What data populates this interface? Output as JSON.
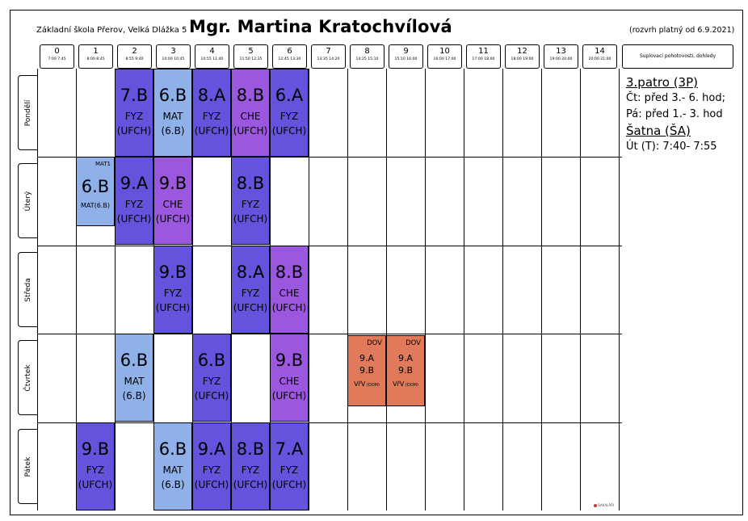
{
  "header": {
    "school": "Základní škola Přerov, Velká Dlážka 5",
    "teacher": "Mgr. Martina Kratochvílová",
    "valid_from": "(rozvrh platný od 6.9.2021)"
  },
  "periods": [
    {
      "n": "0",
      "t": "7:00 7:45"
    },
    {
      "n": "1",
      "t": "8:00 8:45"
    },
    {
      "n": "2",
      "t": "8:55 9:40"
    },
    {
      "n": "3",
      "t": "10:00 10:45"
    },
    {
      "n": "4",
      "t": "10:55 11:40"
    },
    {
      "n": "5",
      "t": "11:50 12:35"
    },
    {
      "n": "6",
      "t": "12:45 13:30"
    },
    {
      "n": "7",
      "t": "13:35 14:20"
    },
    {
      "n": "8",
      "t": "14:25 15:10"
    },
    {
      "n": "9",
      "t": "15:10 16:00"
    },
    {
      "n": "10",
      "t": "16:00 17:00"
    },
    {
      "n": "11",
      "t": "17:00 18:00"
    },
    {
      "n": "12",
      "t": "18:00 19:00"
    },
    {
      "n": "13",
      "t": "19:00 20:00"
    },
    {
      "n": "14",
      "t": "20:00 21:00"
    }
  ],
  "right_header": "Suplovací pohotovosti, dohledy",
  "days": [
    "Pondělí",
    "Úterý",
    "Středa",
    "Čtvrtek",
    "Pátek"
  ],
  "colors": {
    "fyz": "#6453dd",
    "mat": "#8fb0e8",
    "che": "#9b57dd",
    "dov": "#e07a5a"
  },
  "lessons": [
    {
      "day": 0,
      "period": 2,
      "kind": "fyz",
      "lines": [
        "7.B",
        "FYZ",
        "(UFCH)"
      ]
    },
    {
      "day": 0,
      "period": 3,
      "kind": "mat",
      "lines": [
        "6.B",
        "MAT",
        "(6.B)"
      ]
    },
    {
      "day": 0,
      "period": 4,
      "kind": "fyz",
      "lines": [
        "8.A",
        "FYZ",
        "(UFCH)"
      ]
    },
    {
      "day": 0,
      "period": 5,
      "kind": "che",
      "lines": [
        "8.B",
        "CHE",
        "(UFCH)"
      ]
    },
    {
      "day": 0,
      "period": 6,
      "kind": "fyz",
      "lines": [
        "6.A",
        "FYZ",
        "(UFCH)"
      ]
    },
    {
      "day": 1,
      "period": 1,
      "kind": "mat",
      "style": "small",
      "tag": "MAT1",
      "lines": [
        "6.B",
        "MAT(6.B)"
      ]
    },
    {
      "day": 1,
      "period": 2,
      "kind": "fyz",
      "lines": [
        "9.A",
        "FYZ",
        "(UFCH)"
      ]
    },
    {
      "day": 1,
      "period": 3,
      "kind": "che",
      "lines": [
        "9.B",
        "CHE",
        "(UFCH)"
      ]
    },
    {
      "day": 1,
      "period": 5,
      "kind": "fyz",
      "lines": [
        "8.B",
        "FYZ",
        "(UFCH)"
      ]
    },
    {
      "day": 2,
      "period": 3,
      "kind": "fyz",
      "lines": [
        "9.B",
        "FYZ",
        "(UFCH)"
      ]
    },
    {
      "day": 2,
      "period": 5,
      "kind": "fyz",
      "lines": [
        "8.A",
        "FYZ",
        "(UFCH)"
      ]
    },
    {
      "day": 2,
      "period": 6,
      "kind": "che",
      "lines": [
        "8.B",
        "CHE",
        "(UFCH)"
      ]
    },
    {
      "day": 3,
      "period": 2,
      "kind": "mat",
      "lines": [
        "6.B",
        "MAT",
        "(6.B)"
      ]
    },
    {
      "day": 3,
      "period": 4,
      "kind": "fyz",
      "lines": [
        "6.B",
        "FYZ",
        "(UFCH)"
      ]
    },
    {
      "day": 3,
      "period": 6,
      "kind": "che",
      "lines": [
        "9.B",
        "CHE",
        "(UFCH)"
      ]
    },
    {
      "day": 3,
      "period": 8,
      "kind": "dov",
      "style": "dov",
      "tag": "DOV",
      "lines": [
        "9.A",
        "9.B",
        "VřV"
      ],
      "room": "(DOM)"
    },
    {
      "day": 3,
      "period": 9,
      "kind": "dov",
      "style": "dov",
      "tag": "DOV",
      "lines": [
        "9.A",
        "9.B",
        "VřV"
      ],
      "room": "(DOM)"
    },
    {
      "day": 4,
      "period": 1,
      "kind": "fyz",
      "lines": [
        "9.B",
        "FYZ",
        "(UFCH)"
      ]
    },
    {
      "day": 4,
      "period": 3,
      "kind": "mat",
      "lines": [
        "6.B",
        "MAT",
        "(6.B)"
      ]
    },
    {
      "day": 4,
      "period": 4,
      "kind": "fyz",
      "lines": [
        "9.A",
        "FYZ",
        "(UFCH)"
      ]
    },
    {
      "day": 4,
      "period": 5,
      "kind": "fyz",
      "lines": [
        "8.B",
        "FYZ",
        "(UFCH)"
      ]
    },
    {
      "day": 4,
      "period": 6,
      "kind": "fyz",
      "lines": [
        "7.A",
        "FYZ",
        "(UFCH)"
      ]
    }
  ],
  "duties": [
    {
      "text": "3.patro (3P)",
      "heading": true
    },
    {
      "text": "Čt: před 3.- 6. hod;",
      "heading": false
    },
    {
      "text": "Pá: před 1.- 3. hod",
      "heading": false
    },
    {
      "text": "Šatna (ŠA)",
      "heading": true
    },
    {
      "text": "Út (T):  7:40- 7:55",
      "heading": false
    }
  ],
  "brand": "BAKALÁŘI"
}
